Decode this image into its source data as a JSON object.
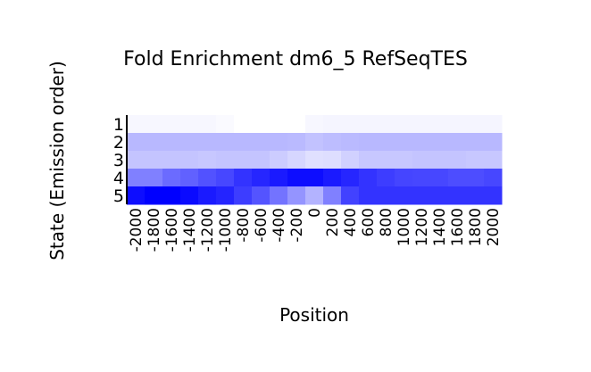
{
  "chart_data": {
    "type": "heatmap",
    "title": "Fold Enrichment dm6_5 RefSeqTES",
    "xlabel": "Position",
    "ylabel": "State (Emission order)",
    "x_categories": [
      "-2000",
      "-1800",
      "-1600",
      "-1400",
      "-1200",
      "-1000",
      "-800",
      "-600",
      "-400",
      "-200",
      "0",
      "200",
      "400",
      "600",
      "800",
      "1000",
      "1200",
      "1400",
      "1600",
      "1800",
      "2000"
    ],
    "y_categories": [
      "1",
      "2",
      "3",
      "4",
      "5"
    ],
    "color_low": "#ffffff",
    "color_high": "#0000ff",
    "values": [
      [
        0.03,
        0.03,
        0.03,
        0.03,
        0.03,
        0.02,
        0.0,
        0.0,
        0.0,
        0.0,
        0.03,
        0.04,
        0.04,
        0.04,
        0.04,
        0.04,
        0.04,
        0.04,
        0.04,
        0.04,
        0.04
      ],
      [
        0.28,
        0.28,
        0.28,
        0.28,
        0.28,
        0.28,
        0.28,
        0.28,
        0.28,
        0.27,
        0.24,
        0.26,
        0.27,
        0.28,
        0.28,
        0.28,
        0.28,
        0.28,
        0.28,
        0.28,
        0.28
      ],
      [
        0.23,
        0.23,
        0.23,
        0.23,
        0.22,
        0.23,
        0.23,
        0.23,
        0.2,
        0.16,
        0.12,
        0.13,
        0.18,
        0.22,
        0.22,
        0.22,
        0.23,
        0.23,
        0.23,
        0.22,
        0.22
      ],
      [
        0.5,
        0.5,
        0.58,
        0.62,
        0.68,
        0.72,
        0.8,
        0.85,
        0.9,
        0.95,
        0.95,
        0.9,
        0.85,
        0.8,
        0.76,
        0.73,
        0.72,
        0.72,
        0.7,
        0.7,
        0.72
      ],
      [
        0.95,
        1.0,
        1.0,
        0.96,
        0.9,
        0.86,
        0.76,
        0.67,
        0.55,
        0.42,
        0.3,
        0.5,
        0.74,
        0.8,
        0.8,
        0.8,
        0.8,
        0.8,
        0.8,
        0.8,
        0.8
      ]
    ]
  }
}
